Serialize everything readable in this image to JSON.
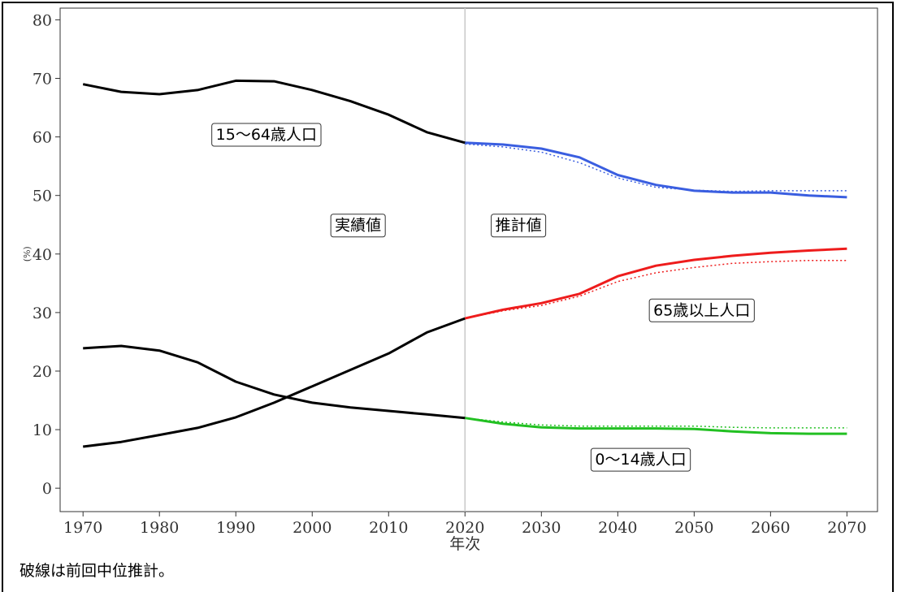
{
  "note": "破線は前回中位推計。",
  "chart_data": {
    "type": "line",
    "xlabel": "年次",
    "ylabel": "(%)",
    "xlim": [
      1967,
      2074
    ],
    "ylim": [
      -4,
      82
    ],
    "xticks": [
      1970,
      1980,
      1990,
      2000,
      2010,
      2020,
      2030,
      2040,
      2050,
      2060,
      2070
    ],
    "yticks": [
      0,
      10,
      20,
      30,
      40,
      50,
      60,
      70,
      80
    ],
    "divider_x": 2020,
    "grid": false,
    "colors": {
      "actual": "#000000",
      "working_age": "#3a5ee0",
      "elderly": "#ee1c1c",
      "children": "#22c022",
      "divider": "#c8c8c8"
    },
    "region_labels": [
      {
        "text": "実績値",
        "x": 2006,
        "y": 45
      },
      {
        "text": "推計値",
        "x": 2027,
        "y": 45
      }
    ],
    "series": [
      {
        "name": "15〜64歳人口",
        "label_pos": {
          "x": 1994,
          "y": 60.5
        },
        "actual": {
          "x": [
            1970,
            1975,
            1980,
            1985,
            1990,
            1995,
            2000,
            2005,
            2010,
            2015,
            2020
          ],
          "y": [
            69.0,
            67.7,
            67.3,
            68.0,
            69.6,
            69.5,
            68.0,
            66.1,
            63.8,
            60.8,
            59.0
          ]
        },
        "projection": {
          "x": [
            2020,
            2025,
            2030,
            2035,
            2040,
            2045,
            2050,
            2055,
            2060,
            2065,
            2070
          ],
          "y": [
            59.0,
            58.7,
            58.0,
            56.5,
            53.5,
            51.8,
            50.8,
            50.5,
            50.5,
            50.0,
            49.7
          ]
        },
        "previous": {
          "x": [
            2020,
            2025,
            2030,
            2035,
            2040,
            2045,
            2050,
            2055,
            2060,
            2065,
            2070
          ],
          "y": [
            58.8,
            58.3,
            57.4,
            55.6,
            53.0,
            51.4,
            50.9,
            50.7,
            50.8,
            50.8,
            50.8
          ]
        }
      },
      {
        "name": "65歳以上人口",
        "label_pos": {
          "x": 2051,
          "y": 30.5
        },
        "actual": {
          "x": [
            1970,
            1975,
            1980,
            1985,
            1990,
            1995,
            2000,
            2005,
            2010,
            2015,
            2020
          ],
          "y": [
            7.1,
            7.9,
            9.1,
            10.3,
            12.1,
            14.6,
            17.4,
            20.2,
            23.0,
            26.6,
            29.0
          ]
        },
        "projection": {
          "x": [
            2020,
            2025,
            2030,
            2035,
            2040,
            2045,
            2050,
            2055,
            2060,
            2065,
            2070
          ],
          "y": [
            29.0,
            30.5,
            31.6,
            33.2,
            36.2,
            38.0,
            39.0,
            39.7,
            40.2,
            40.6,
            40.9
          ]
        },
        "previous": {
          "x": [
            2020,
            2025,
            2030,
            2035,
            2040,
            2045,
            2050,
            2055,
            2060,
            2065,
            2070
          ],
          "y": [
            29.0,
            30.3,
            31.2,
            32.8,
            35.3,
            36.8,
            37.7,
            38.4,
            38.7,
            38.9,
            38.9
          ]
        }
      },
      {
        "name": "0〜14歳人口",
        "label_pos": {
          "x": 2043,
          "y": 5
        },
        "actual": {
          "x": [
            1970,
            1975,
            1980,
            1985,
            1990,
            1995,
            2000,
            2005,
            2010,
            2015,
            2020
          ],
          "y": [
            23.9,
            24.3,
            23.5,
            21.5,
            18.2,
            16.0,
            14.6,
            13.8,
            13.2,
            12.6,
            12.0
          ]
        },
        "projection": {
          "x": [
            2020,
            2025,
            2030,
            2035,
            2040,
            2045,
            2050,
            2055,
            2060,
            2065,
            2070
          ],
          "y": [
            12.0,
            11.0,
            10.4,
            10.2,
            10.2,
            10.2,
            10.1,
            9.7,
            9.4,
            9.3,
            9.3
          ]
        },
        "previous": {
          "x": [
            2020,
            2025,
            2030,
            2035,
            2040,
            2045,
            2050,
            2055,
            2060,
            2065,
            2070
          ],
          "y": [
            12.0,
            11.3,
            10.8,
            10.6,
            10.6,
            10.6,
            10.6,
            10.4,
            10.3,
            10.3,
            10.3
          ]
        }
      }
    ]
  }
}
